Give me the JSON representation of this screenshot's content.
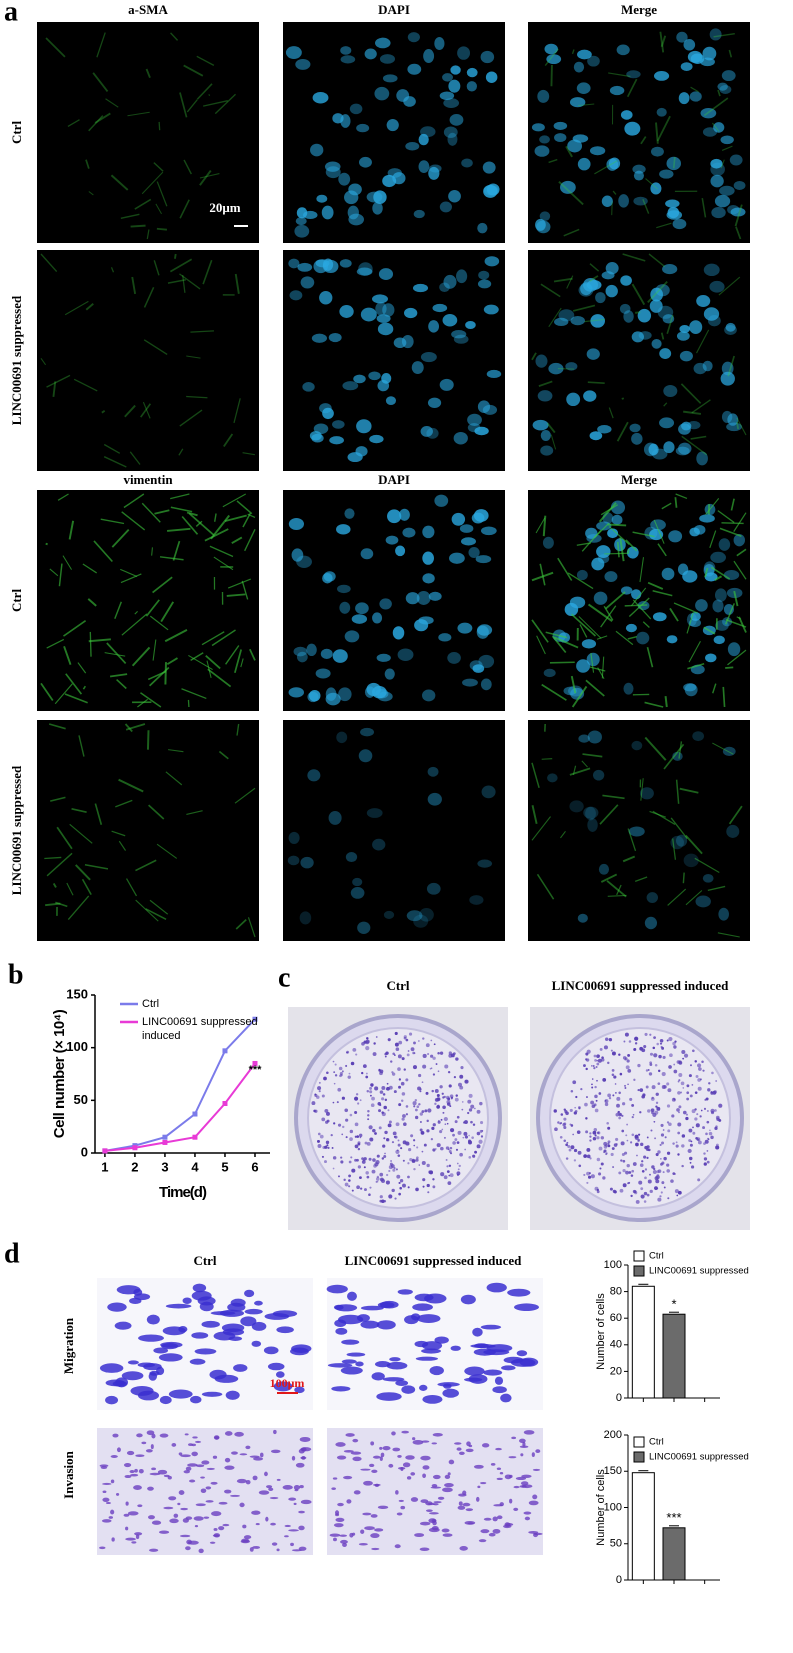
{
  "panels": {
    "a": {
      "label": "a",
      "columns_top": [
        "a-SMA",
        "DAPI",
        "Merge"
      ],
      "columns_bottom": [
        "vimentin",
        "DAPI",
        "Merge"
      ],
      "rows": [
        "Ctrl",
        "LINC00691 suppressed",
        "Ctrl",
        "LINC00691 suppressed"
      ],
      "scale_bar": "20μm"
    },
    "b": {
      "label": "b"
    },
    "c": {
      "label": "c",
      "columns": [
        "Ctrl",
        "LINC00691 suppressed induced"
      ]
    },
    "d": {
      "label": "d",
      "columns": [
        "Ctrl",
        "LINC00691 suppressed induced"
      ],
      "rows": [
        "Migration",
        "Invasion"
      ],
      "scale_bar": "100μm"
    }
  },
  "chart_data": [
    {
      "type": "line",
      "x": [
        1,
        2,
        3,
        4,
        5,
        6
      ],
      "xlim": [
        0.67,
        6.5
      ],
      "xticks": [
        1,
        2,
        3,
        4,
        5,
        6
      ],
      "ylim": [
        0,
        150
      ],
      "yticks": [
        0,
        50,
        100,
        150
      ],
      "xlabel": "Time(d)",
      "ylabel": "Cell number (× 10⁴)",
      "annotation": "***",
      "series": [
        {
          "name": "Ctrl",
          "color": "#7b7bea",
          "values": [
            2,
            7,
            15,
            37,
            97,
            127
          ]
        },
        {
          "name": "LINC00691 suppressed induced",
          "color": "#e83ad6",
          "values": [
            2,
            5,
            10,
            15,
            47,
            85
          ]
        }
      ]
    },
    {
      "type": "bar",
      "categories": [
        null,
        null
      ],
      "ylim": [
        0,
        100
      ],
      "yticks": [
        0,
        20,
        40,
        60,
        80,
        100
      ],
      "ylabel": "Number of cells",
      "annotation": "*",
      "series": [
        {
          "name": "Ctrl",
          "color": "#ffffff",
          "values": [
            84,
            null
          ]
        },
        {
          "name": "LINC00691 suppressed",
          "color": "#6b6b6b",
          "values": [
            null,
            63
          ]
        }
      ]
    },
    {
      "type": "bar",
      "categories": [
        null,
        null
      ],
      "ylim": [
        0,
        200
      ],
      "yticks": [
        0,
        50,
        100,
        150,
        200
      ],
      "ylabel": "Number of cells",
      "annotation": "***",
      "series": [
        {
          "name": "Ctrl",
          "color": "#ffffff",
          "values": [
            148,
            null
          ]
        },
        {
          "name": "LINC00691 suppressed",
          "color": "#6b6b6b",
          "values": [
            null,
            72
          ]
        }
      ]
    }
  ]
}
